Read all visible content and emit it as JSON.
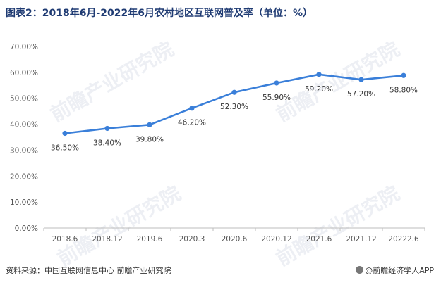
{
  "title": "图表2：2018年6月-2022年6月农村地区互联网普及率（单位：%）",
  "source": "资料来源：中国互联网信息中心 前瞻产业研究院",
  "brand": "@前瞻经济学人APP",
  "watermark": "前瞻产业研究院",
  "colors": {
    "line": "#3a7fd9",
    "axis": "#bdbdbd",
    "title": "#1f3b73"
  },
  "chart_data": {
    "type": "line",
    "title": "图表2：2018年6月-2022年6月农村地区互联网普及率（单位：%）",
    "xlabel": "",
    "ylabel": "",
    "ylim": [
      0,
      70
    ],
    "yticks": [
      "0.00%",
      "10.00%",
      "20.00%",
      "30.00%",
      "40.00%",
      "50.00%",
      "60.00%",
      "70.00%"
    ],
    "categories": [
      "2018.6",
      "2018.12",
      "2019.6",
      "2020.3",
      "2020.6",
      "2020.12",
      "2021.6",
      "2021.12",
      "20222.6"
    ],
    "values": [
      36.5,
      38.4,
      39.8,
      46.2,
      52.3,
      55.9,
      59.2,
      57.2,
      58.8
    ],
    "data_labels": [
      "36.50%",
      "38.40%",
      "39.80%",
      "46.20%",
      "52.30%",
      "55.90%",
      "59.20%",
      "57.20%",
      "58.80%"
    ],
    "grid": false,
    "legend": "none"
  }
}
